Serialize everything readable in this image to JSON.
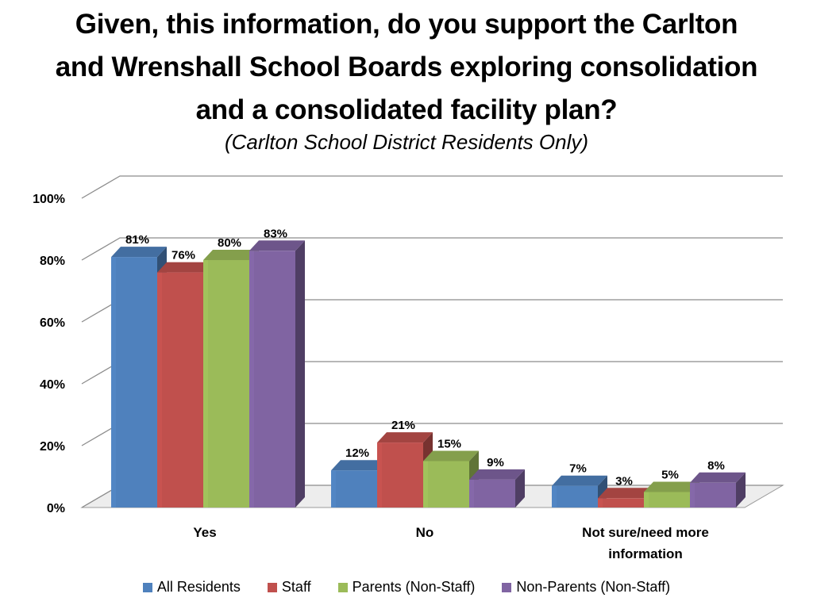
{
  "chart_data": {
    "type": "bar",
    "title_lines": [
      "Given, this information, do you support the Carlton",
      "and Wrenshall School Boards exploring consolidation",
      "and a consolidated facility plan?"
    ],
    "subtitle": "(Carlton School District Residents Only)",
    "categories": [
      [
        "Yes"
      ],
      [
        "No"
      ],
      [
        "Not sure/need more",
        "information"
      ]
    ],
    "series": [
      {
        "name": "All Residents",
        "color": "#4f81bd",
        "values": [
          81,
          12,
          7
        ],
        "labels": [
          "81%",
          "12%",
          "7%"
        ]
      },
      {
        "name": "Staff",
        "color": "#c0504d",
        "values": [
          76,
          21,
          3
        ],
        "labels": [
          "76%",
          "21%",
          "3%"
        ]
      },
      {
        "name": "Parents (Non-Staff)",
        "color": "#9bbb59",
        "values": [
          80,
          15,
          5
        ],
        "labels": [
          "80%",
          "15%",
          "5%"
        ]
      },
      {
        "name": "Non-Parents (Non-Staff)",
        "color": "#8064a2",
        "values": [
          83,
          9,
          8
        ],
        "labels": [
          "83%",
          "9%",
          "8%"
        ]
      }
    ],
    "y_ticks": [
      "0%",
      "20%",
      "40%",
      "60%",
      "80%",
      "100%"
    ],
    "ylim": [
      0,
      100
    ],
    "grid": true,
    "legend_position": "bottom",
    "style": "3d-clustered-column"
  }
}
